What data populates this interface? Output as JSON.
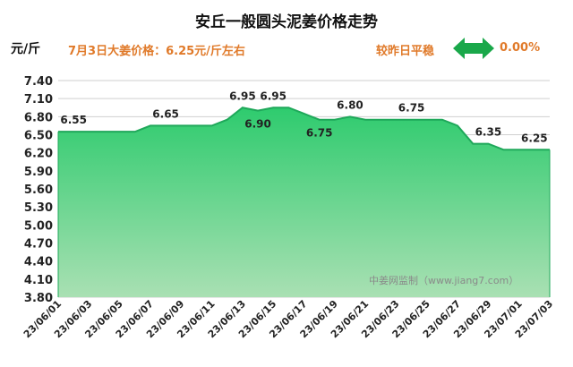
{
  "header": {
    "title": "安丘一般圆头泥姜价格走势",
    "unit": "元/斤",
    "price_note": "7月3日大姜价格：6.25元/斤左右",
    "compare_label": "较昨日平稳",
    "compare_value": "0.00%"
  },
  "watermark": "中姜网监制（www.jiang7.com）",
  "colors": {
    "fill_top": "#2ecb6e",
    "fill_bottom": "#a9e0b3",
    "accent": "#e07a2a",
    "arrow": "#1aa84a"
  },
  "chart_data": {
    "type": "area",
    "title": "安丘一般圆头泥姜价格走势",
    "ylabel": "元/斤",
    "xlabel": "",
    "ylim": [
      3.8,
      7.4
    ],
    "yticks": [
      7.4,
      7.1,
      6.8,
      6.5,
      6.2,
      5.9,
      5.6,
      5.3,
      5.0,
      4.7,
      4.4,
      4.1,
      3.8
    ],
    "grid": "horizontal",
    "x_tick_labels": [
      "23/06/01",
      "23/06/03",
      "23/06/05",
      "23/06/07",
      "23/06/09",
      "23/06/11",
      "23/06/13",
      "23/06/15",
      "23/06/17",
      "23/06/19",
      "23/06/21",
      "23/06/23",
      "23/06/25",
      "23/06/27",
      "23/06/29",
      "23/07/01",
      "23/07/03"
    ],
    "x": [
      "23/06/01",
      "23/06/02",
      "23/06/03",
      "23/06/04",
      "23/06/05",
      "23/06/06",
      "23/06/07",
      "23/06/08",
      "23/06/09",
      "23/06/10",
      "23/06/11",
      "23/06/12",
      "23/06/13",
      "23/06/14",
      "23/06/15",
      "23/06/16",
      "23/06/17",
      "23/06/18",
      "23/06/19",
      "23/06/20",
      "23/06/21",
      "23/06/22",
      "23/06/23",
      "23/06/24",
      "23/06/25",
      "23/06/26",
      "23/06/27",
      "23/06/28",
      "23/06/29",
      "23/06/30",
      "23/07/01",
      "23/07/02",
      "23/07/03"
    ],
    "values": [
      6.55,
      6.55,
      6.55,
      6.55,
      6.55,
      6.55,
      6.65,
      6.65,
      6.65,
      6.65,
      6.65,
      6.75,
      6.95,
      6.9,
      6.95,
      6.95,
      6.85,
      6.75,
      6.75,
      6.8,
      6.75,
      6.75,
      6.75,
      6.75,
      6.75,
      6.75,
      6.65,
      6.35,
      6.35,
      6.25,
      6.25,
      6.25,
      6.25
    ],
    "data_labels": [
      {
        "x": "23/06/02",
        "value": "6.55"
      },
      {
        "x": "23/06/08",
        "value": "6.65"
      },
      {
        "x": "23/06/13",
        "value": "6.95"
      },
      {
        "x": "23/06/14",
        "value": "6.90"
      },
      {
        "x": "23/06/15",
        "value": "6.95"
      },
      {
        "x": "23/06/18",
        "value": "6.75"
      },
      {
        "x": "23/06/20",
        "value": "6.80"
      },
      {
        "x": "23/06/24",
        "value": "6.75"
      },
      {
        "x": "23/06/29",
        "value": "6.35"
      },
      {
        "x": "23/07/02",
        "value": "6.25"
      }
    ]
  }
}
